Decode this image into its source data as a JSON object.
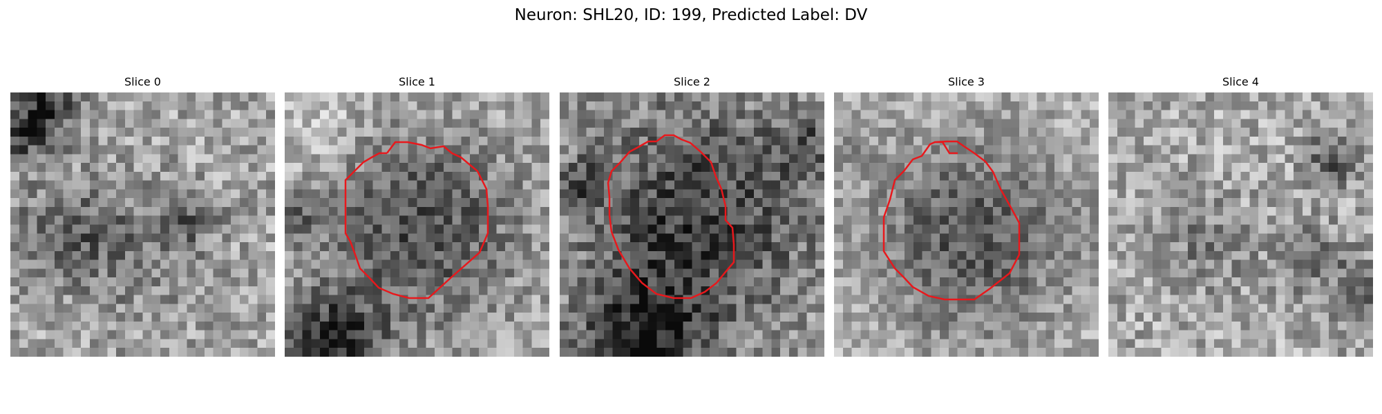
{
  "figure": {
    "title": "Neuron: SHL20, ID: 199, Predicted Label: DV"
  },
  "panels": [
    {
      "title": "Slice 0",
      "has_contour": false
    },
    {
      "title": "Slice 1",
      "has_contour": true
    },
    {
      "title": "Slice 2",
      "has_contour": true
    },
    {
      "title": "Slice 3",
      "has_contour": true
    },
    {
      "title": "Slice 4",
      "has_contour": false
    }
  ],
  "colors": {
    "contour": "#e8181c",
    "background": "#ffffff"
  },
  "colormap": "gray"
}
